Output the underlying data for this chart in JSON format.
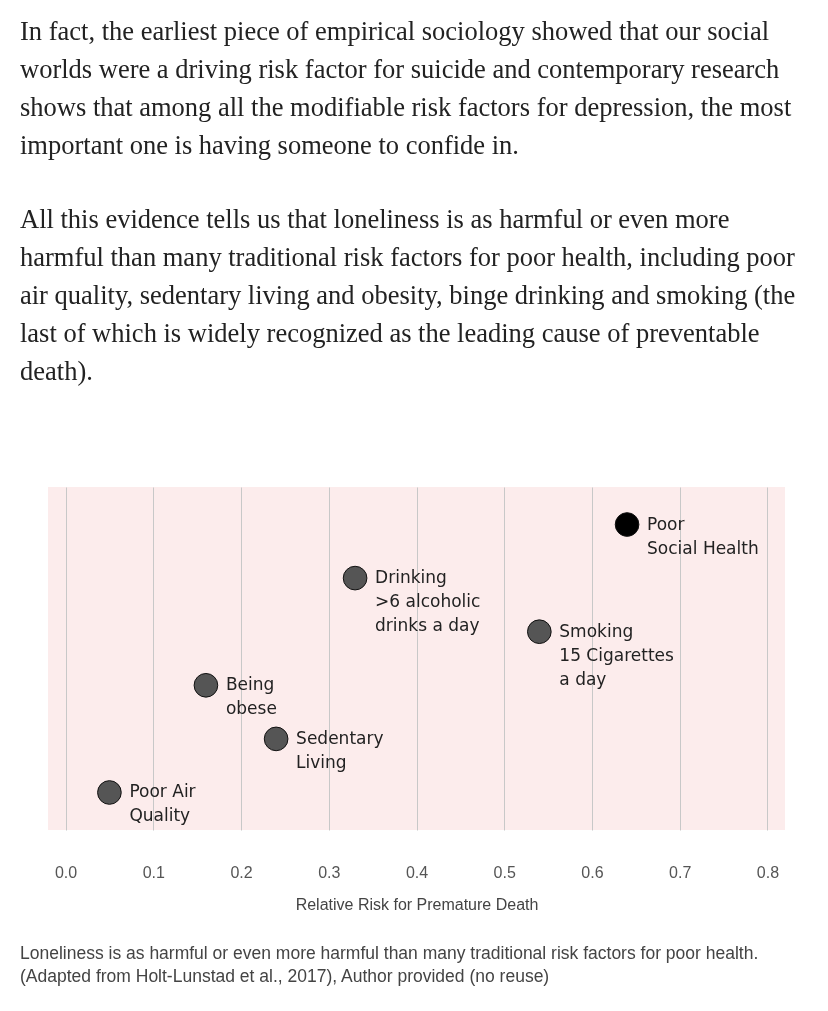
{
  "chart_data": {
    "type": "scatter",
    "orientation": "horizontal",
    "categories": [
      "Poor\nSocial Health",
      "Drinking\n>6 alcoholic\ndrinks a day",
      "Smoking\n15 Cigarettes\na day",
      "Being\nobese",
      "Sedentary\nLiving",
      "Poor Air\nQuality"
    ],
    "values": [
      0.64,
      0.33,
      0.54,
      0.16,
      0.24,
      0.05
    ],
    "colors": [
      "#000000",
      "#555555",
      "#555555",
      "#555555",
      "#555555",
      "#555555"
    ],
    "marker": "circle",
    "xlabel": "Relative Risk for Premature Death",
    "xlim": [
      -0.02,
      0.82
    ],
    "xticks": [
      {
        "value": 0,
        "label": "0.0"
      },
      0.1,
      0.2,
      0.3,
      0.4,
      0.5,
      0.6,
      0.7,
      0.8
    ],
    "grid": "x",
    "annotations": [
      "In fact, the earliest piece of empirical sociology showed that our social worlds were a driving risk factor for suicide and contemporary research shows that among all the modifiable risk factors for depression, the most important one is having someone to confide in.",
      "All this evidence tells us that loneliness is as harmful or even more harmful than many traditional risk factors for poor health, including poor air quality, sedentary living and obesity, binge drinking and smoking (the last of which is widely recognized as the leading cause of preventable death).",
      "Loneliness is as harmful or even more harmful than many traditional risk factors for poor health. (Adapted from Holt-Lunstad et al., 2017), Author provided (no reuse)"
    ]
  }
}
